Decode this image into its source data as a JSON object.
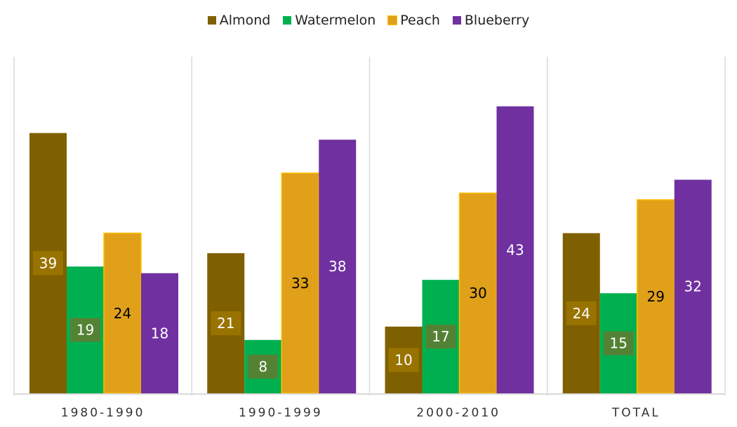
{
  "chart_data": {
    "type": "bar",
    "title": "",
    "xlabel": "",
    "ylabel": "",
    "ylim": [
      0,
      50
    ],
    "grid": false,
    "legend_position": "top",
    "categories": [
      "1980-1990",
      "1990-1999",
      "2000-2010",
      "TOTAL"
    ],
    "series": [
      {
        "name": "Almond",
        "color": "#7F6000",
        "values": [
          39,
          21,
          10,
          24
        ]
      },
      {
        "name": "Watermelon",
        "color": "#00B050",
        "values": [
          19,
          8,
          17,
          15
        ]
      },
      {
        "name": "Peach",
        "color": "#E0A01A",
        "values": [
          24,
          33,
          30,
          29
        ]
      },
      {
        "name": "Blueberry",
        "color": "#7030A0",
        "values": [
          18,
          38,
          43,
          32
        ]
      }
    ]
  }
}
